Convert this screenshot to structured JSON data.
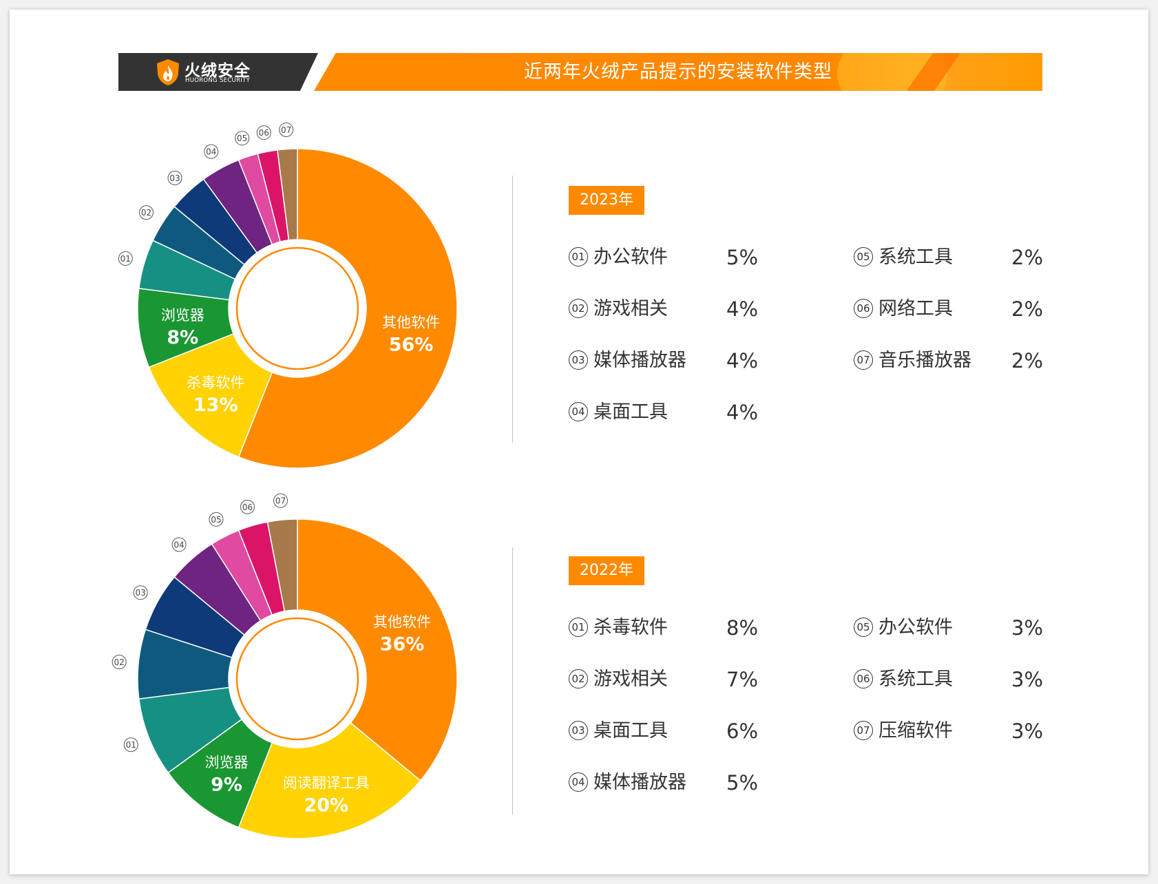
{
  "header": {
    "logo_cn": "火绒安全",
    "logo_en": "HUORONG SECURITY",
    "title": "近两年火绒产品提示的安装软件类型"
  },
  "colors": {
    "orange": "#ff8a00",
    "yellow": "#ffd200",
    "green": "#1a9632",
    "teal": "#169082",
    "blue1": "#0e5a7e",
    "blue2": "#0e3a7a",
    "purple": "#6e2480",
    "pink": "#e04aa0",
    "magenta": "#dc1468",
    "brown": "#a87a4a"
  },
  "chart_data": [
    {
      "type": "pie",
      "title": "2023年",
      "categories": [
        "其他软件",
        "杀毒软件",
        "浏览器",
        "办公软件",
        "游戏相关",
        "媒体播放器",
        "桌面工具",
        "系统工具",
        "网络工具",
        "音乐播放器"
      ],
      "values": [
        56,
        13,
        8,
        5,
        4,
        4,
        4,
        2,
        2,
        2
      ],
      "slice_labels": [
        "",
        "",
        "",
        "01",
        "02",
        "03",
        "04",
        "05",
        "06",
        "07"
      ],
      "inner_labels": [
        {
          "name": "其他软件",
          "value": "56%"
        },
        {
          "name": "杀毒软件",
          "value": "13%"
        },
        {
          "name": "浏览器",
          "value": "8%"
        }
      ],
      "legend": [
        {
          "num": "01",
          "name": "办公软件",
          "value": "5%"
        },
        {
          "num": "02",
          "name": "游戏相关",
          "value": "4%"
        },
        {
          "num": "03",
          "name": "媒体播放器",
          "value": "4%"
        },
        {
          "num": "04",
          "name": "桌面工具",
          "value": "4%"
        },
        {
          "num": "05",
          "name": "系统工具",
          "value": "2%"
        },
        {
          "num": "06",
          "name": "网络工具",
          "value": "2%"
        },
        {
          "num": "07",
          "name": "音乐播放器",
          "value": "2%"
        }
      ]
    },
    {
      "type": "pie",
      "title": "2022年",
      "categories": [
        "其他软件",
        "阅读翻译工具",
        "浏览器",
        "杀毒软件",
        "游戏相关",
        "桌面工具",
        "媒体播放器",
        "办公软件",
        "系统工具",
        "压缩软件"
      ],
      "values": [
        36,
        20,
        9,
        8,
        7,
        6,
        5,
        3,
        3,
        3
      ],
      "slice_labels": [
        "",
        "",
        "",
        "01",
        "02",
        "03",
        "04",
        "05",
        "06",
        "07"
      ],
      "inner_labels": [
        {
          "name": "其他软件",
          "value": "36%"
        },
        {
          "name": "阅读翻译工具",
          "value": "20%"
        },
        {
          "name": "浏览器",
          "value": "9%"
        }
      ],
      "legend": [
        {
          "num": "01",
          "name": "杀毒软件",
          "value": "8%"
        },
        {
          "num": "02",
          "name": "游戏相关",
          "value": "7%"
        },
        {
          "num": "03",
          "name": "桌面工具",
          "value": "6%"
        },
        {
          "num": "04",
          "name": "媒体播放器",
          "value": "5%"
        },
        {
          "num": "05",
          "name": "办公软件",
          "value": "3%"
        },
        {
          "num": "06",
          "name": "系统工具",
          "value": "3%"
        },
        {
          "num": "07",
          "name": "压缩软件",
          "value": "3%"
        }
      ]
    }
  ]
}
